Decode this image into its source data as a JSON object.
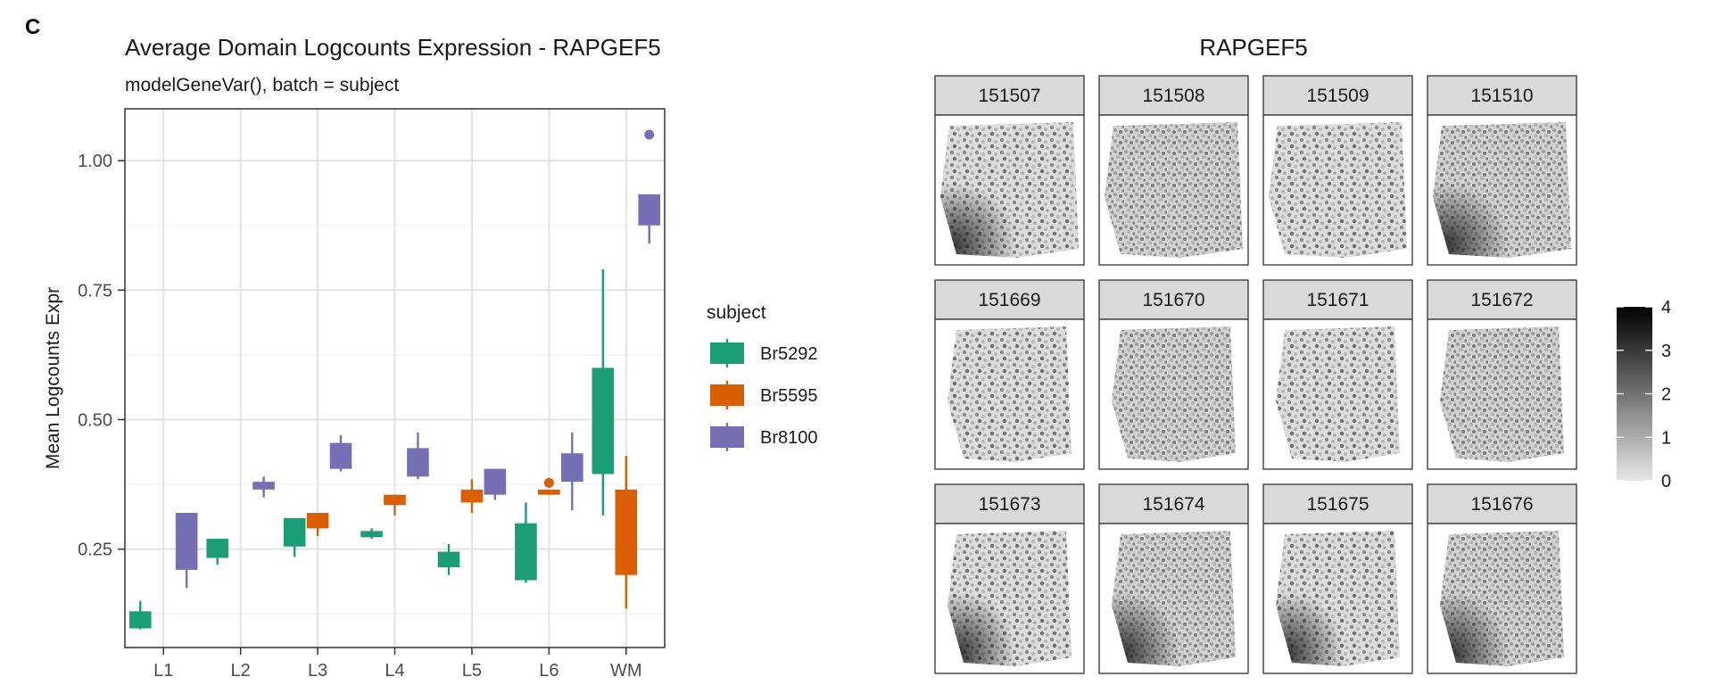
{
  "panel_label": "C",
  "chart_data": [
    {
      "type": "box",
      "title": "Average Domain Logcounts Expression - RAPGEF5",
      "subtitle": "modelGeneVar(), batch = subject",
      "xlabel": "",
      "ylabel": "Mean Logcounts Expr",
      "categories": [
        "L1",
        "L2",
        "L3",
        "L4",
        "L5",
        "L6",
        "WM"
      ],
      "yticks": [
        "0.25",
        "0.50",
        "0.75",
        "1.00"
      ],
      "ylim": [
        0.06,
        1.1
      ],
      "grid": true,
      "legend": {
        "title": "subject",
        "position": "right"
      },
      "series": [
        {
          "name": "Br5292",
          "color": "#1B9E77",
          "boxes": [
            {
              "category": "L1",
              "lo": 0.095,
              "q1": 0.097,
              "med": 0.098,
              "q3": 0.13,
              "hi": 0.15
            },
            {
              "category": "L2",
              "lo": 0.22,
              "q1": 0.233,
              "med": 0.235,
              "q3": 0.27,
              "hi": 0.27
            },
            {
              "category": "L3",
              "lo": 0.235,
              "q1": 0.255,
              "med": 0.26,
              "q3": 0.31,
              "hi": 0.31
            },
            {
              "category": "L4",
              "lo": 0.27,
              "q1": 0.273,
              "med": 0.275,
              "q3": 0.285,
              "hi": 0.29
            },
            {
              "category": "L5",
              "lo": 0.2,
              "q1": 0.215,
              "med": 0.22,
              "q3": 0.245,
              "hi": 0.26
            },
            {
              "category": "L6",
              "lo": 0.185,
              "q1": 0.19,
              "med": 0.195,
              "q3": 0.3,
              "hi": 0.34
            },
            {
              "category": "WM",
              "lo": 0.315,
              "q1": 0.395,
              "med": 0.4,
              "q3": 0.6,
              "hi": 0.79
            }
          ],
          "outliers": []
        },
        {
          "name": "Br5595",
          "color": "#D95F02",
          "boxes": [
            {
              "category": "L3",
              "lo": 0.275,
              "q1": 0.29,
              "med": 0.31,
              "q3": 0.32,
              "hi": 0.32
            },
            {
              "category": "L4",
              "lo": 0.315,
              "q1": 0.335,
              "med": 0.34,
              "q3": 0.355,
              "hi": 0.355
            },
            {
              "category": "L5",
              "lo": 0.32,
              "q1": 0.34,
              "med": 0.345,
              "q3": 0.365,
              "hi": 0.385
            },
            {
              "category": "L6",
              "lo": 0.355,
              "q1": 0.355,
              "med": 0.36,
              "q3": 0.365,
              "hi": 0.365
            },
            {
              "category": "WM",
              "lo": 0.135,
              "q1": 0.2,
              "med": 0.205,
              "q3": 0.365,
              "hi": 0.43
            }
          ],
          "outliers": [
            {
              "category": "L6",
              "value": 0.378
            }
          ]
        },
        {
          "name": "Br8100",
          "color": "#7570B3",
          "boxes": [
            {
              "category": "L1",
              "lo": 0.175,
              "q1": 0.21,
              "med": 0.215,
              "q3": 0.32,
              "hi": 0.32
            },
            {
              "category": "L2",
              "lo": 0.35,
              "q1": 0.365,
              "med": 0.37,
              "q3": 0.38,
              "hi": 0.39
            },
            {
              "category": "L3",
              "lo": 0.4,
              "q1": 0.405,
              "med": 0.41,
              "q3": 0.455,
              "hi": 0.47
            },
            {
              "category": "L4",
              "lo": 0.385,
              "q1": 0.39,
              "med": 0.395,
              "q3": 0.445,
              "hi": 0.475
            },
            {
              "category": "L5",
              "lo": 0.345,
              "q1": 0.355,
              "med": 0.36,
              "q3": 0.405,
              "hi": 0.405
            },
            {
              "category": "L6",
              "lo": 0.325,
              "q1": 0.38,
              "med": 0.385,
              "q3": 0.435,
              "hi": 0.475
            },
            {
              "category": "WM",
              "lo": 0.84,
              "q1": 0.875,
              "med": 0.88,
              "q3": 0.935,
              "hi": 0.935
            }
          ],
          "outliers": [
            {
              "category": "WM",
              "value": 1.05
            }
          ]
        }
      ]
    },
    {
      "type": "heatmap",
      "title": "RAPGEF5",
      "facets": [
        "151507",
        "151508",
        "151509",
        "151510",
        "151669",
        "151670",
        "151671",
        "151672",
        "151673",
        "151674",
        "151675",
        "151676"
      ],
      "colorbar": {
        "ticks": [
          "0",
          "1",
          "2",
          "3",
          "4"
        ],
        "min": 0,
        "max": 4,
        "low_color": "#e6e6e6",
        "high_color": "#000000"
      }
    }
  ]
}
